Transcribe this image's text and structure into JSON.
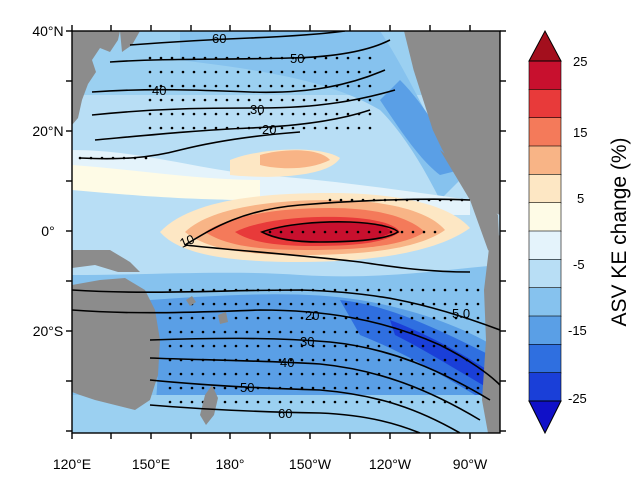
{
  "map": {
    "lat_labels": [
      "40°N",
      "20°N",
      "0°",
      "20°S"
    ],
    "lon_labels": [
      "120°E",
      "150°E",
      "180°",
      "150°W",
      "120°W",
      "90°W"
    ],
    "contour_labels": [
      "60",
      "50",
      "40",
      "30",
      "20",
      "10",
      "5.0",
      "20",
      "30",
      "40",
      "50",
      "60"
    ],
    "land_color": "#8c8c8c",
    "stipple_color": "#000000"
  },
  "colorbar": {
    "title": "ASV KE change (%)",
    "tick_labels": [
      "25",
      "15",
      "5",
      "-5",
      "-15",
      "-25"
    ],
    "colors": [
      "#c8102e",
      "#e83a3a",
      "#f47a5a",
      "#f8b486",
      "#fde7c4",
      "#fefbe6",
      "#e4f3fb",
      "#b8def5",
      "#86c2ee",
      "#5a9fe6",
      "#2f6fe0",
      "#1a3fd8"
    ],
    "tip_colors": [
      "#a30f1d",
      "#1010c8"
    ]
  }
}
